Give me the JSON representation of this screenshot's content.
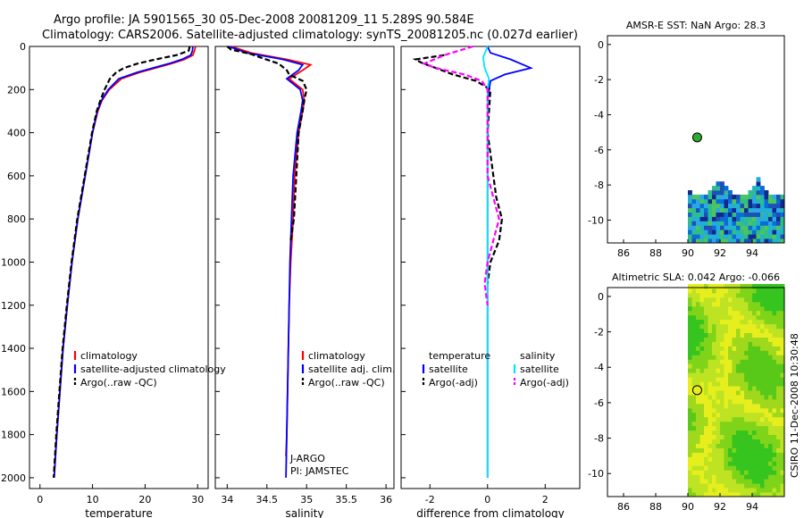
{
  "header": {
    "title_line1": "Argo profile: JA 5901565_30 05-Dec-2008 20081209_11 5.289S 90.584E",
    "title_line2": "Climatology: CARS2006. Satellite-adjusted climatology: synTS_20081205.nc (0.027d earlier)"
  },
  "side_label": "CSIRO 11-Dec-2008 10:30:48",
  "colors": {
    "clim": "#ff0000",
    "sat": "#0000ff",
    "argo": "#000000",
    "sat_salt": "#00e5ff",
    "argo_salt": "#ff00ff",
    "marker": "#2eaa2e"
  },
  "chart_data": [
    {
      "id": "temperature",
      "type": "line",
      "xlabel": "temperature",
      "xlim": [
        -2,
        32
      ],
      "ylim": [
        2050,
        0
      ],
      "xticks": [
        0,
        10,
        20,
        30
      ],
      "yticks": [
        0,
        200,
        400,
        600,
        800,
        1000,
        1200,
        1400,
        1600,
        1800,
        2000
      ],
      "legend": [
        "climatology",
        "satellite-adjusted climatology",
        "Argo(..raw -QC)"
      ],
      "series": [
        {
          "name": "climatology",
          "style": "clim",
          "points": [
            [
              29.6,
              0
            ],
            [
              29.4,
              20
            ],
            [
              29.1,
              40
            ],
            [
              27.5,
              60
            ],
            [
              25,
              80
            ],
            [
              22,
              100
            ],
            [
              19,
              120
            ],
            [
              15.5,
              150
            ],
            [
              13.2,
              200
            ],
            [
              11.8,
              250
            ],
            [
              11,
              300
            ],
            [
              10,
              400
            ],
            [
              8.6,
              600
            ],
            [
              7.2,
              800
            ],
            [
              6.1,
              1000
            ],
            [
              5.2,
              1200
            ],
            [
              4.4,
              1400
            ],
            [
              3.8,
              1600
            ],
            [
              3.2,
              1800
            ],
            [
              2.7,
              2000
            ]
          ]
        },
        {
          "name": "satellite-adjusted climatology",
          "style": "sat",
          "points": [
            [
              29.1,
              0
            ],
            [
              29,
              20
            ],
            [
              28.7,
              40
            ],
            [
              27,
              60
            ],
            [
              24.5,
              80
            ],
            [
              21.5,
              100
            ],
            [
              18.5,
              120
            ],
            [
              15,
              150
            ],
            [
              13,
              200
            ],
            [
              11.7,
              250
            ],
            [
              10.9,
              300
            ],
            [
              10,
              400
            ],
            [
              8.6,
              600
            ],
            [
              7.2,
              800
            ],
            [
              6.1,
              1000
            ],
            [
              5.2,
              1200
            ],
            [
              4.4,
              1400
            ],
            [
              3.8,
              1600
            ],
            [
              3.2,
              1800
            ],
            [
              2.7,
              2000
            ]
          ]
        },
        {
          "name": "Argo(..raw -QC)",
          "style": "argo",
          "dash": true,
          "points": [
            [
              28.5,
              0
            ],
            [
              28.3,
              20
            ],
            [
              26,
              40
            ],
            [
              22,
              60
            ],
            [
              18.5,
              80
            ],
            [
              16,
              100
            ],
            [
              14.5,
              120
            ],
            [
              13.3,
              150
            ],
            [
              12.3,
              200
            ],
            [
              11.5,
              250
            ],
            [
              10.8,
              300
            ],
            [
              9.9,
              400
            ],
            [
              8.5,
              600
            ],
            [
              7.1,
              800
            ],
            [
              6,
              1000
            ],
            [
              5.1,
              1200
            ],
            [
              4.3,
              1400
            ],
            [
              3.7,
              1600
            ],
            [
              3.1,
              1800
            ],
            [
              2.6,
              2000
            ]
          ]
        }
      ]
    },
    {
      "id": "salinity",
      "type": "line",
      "xlabel": "salinity",
      "xlim": [
        33.85,
        36.1
      ],
      "ylim": [
        2050,
        0
      ],
      "xticks": [
        34,
        34.5,
        35,
        35.5,
        36
      ],
      "legend": [
        "climatology",
        "satellite adj. clim.",
        "Argo(..raw -QC)"
      ],
      "annotations": [
        "J-ARGO",
        "PI: JAMSTEC"
      ],
      "series": [
        {
          "name": "climatology",
          "style": "clim",
          "points": [
            [
              34.05,
              0
            ],
            [
              34.3,
              30
            ],
            [
              34.75,
              60
            ],
            [
              35.05,
              85
            ],
            [
              34.95,
              110
            ],
            [
              34.78,
              150
            ],
            [
              34.95,
              200
            ],
            [
              34.97,
              250
            ],
            [
              34.95,
              300
            ],
            [
              34.9,
              400
            ],
            [
              34.85,
              600
            ],
            [
              34.83,
              800
            ],
            [
              34.8,
              1000
            ],
            [
              34.78,
              1200
            ],
            [
              34.77,
              1400
            ],
            [
              34.76,
              1600
            ],
            [
              34.75,
              1800
            ],
            [
              34.74,
              1900
            ]
          ]
        },
        {
          "name": "satellite adj. clim.",
          "style": "sat",
          "points": [
            [
              34.02,
              0
            ],
            [
              34.25,
              30
            ],
            [
              34.7,
              60
            ],
            [
              34.95,
              85
            ],
            [
              34.9,
              110
            ],
            [
              34.75,
              150
            ],
            [
              34.92,
              200
            ],
            [
              34.95,
              250
            ],
            [
              34.93,
              300
            ],
            [
              34.88,
              400
            ],
            [
              34.83,
              600
            ],
            [
              34.81,
              800
            ],
            [
              34.79,
              1000
            ],
            [
              34.78,
              1200
            ],
            [
              34.77,
              1400
            ],
            [
              34.76,
              1600
            ],
            [
              34.75,
              1800
            ],
            [
              34.74,
              2000
            ]
          ]
        },
        {
          "name": "Argo(..raw -QC)",
          "style": "argo",
          "dash": true,
          "points": [
            [
              34.0,
              0
            ],
            [
              34.05,
              15
            ],
            [
              34.3,
              35
            ],
            [
              34.45,
              55
            ],
            [
              34.65,
              80
            ],
            [
              34.75,
              110
            ],
            [
              34.78,
              130
            ],
            [
              34.95,
              160
            ],
            [
              35.0,
              200
            ],
            [
              34.97,
              250
            ],
            [
              34.95,
              300
            ],
            [
              34.9,
              400
            ],
            [
              34.87,
              600
            ],
            [
              34.84,
              800
            ],
            [
              34.8,
              900
            ]
          ]
        }
      ]
    },
    {
      "id": "difference",
      "type": "line",
      "xlabel": "difference from climatology",
      "xlim": [
        -3,
        3.2
      ],
      "ylim": [
        2050,
        0
      ],
      "xticks": [
        -2,
        0,
        2
      ],
      "legend_left": [
        "temperature",
        "satellite",
        "Argo(-adj)"
      ],
      "legend_right": [
        "salinity",
        "satellite",
        "Argo(-adj)"
      ],
      "series": [
        {
          "name": "temperature satellite",
          "style": "sat",
          "points": [
            [
              0,
              0
            ],
            [
              0.1,
              30
            ],
            [
              0.8,
              60
            ],
            [
              1.5,
              100
            ],
            [
              0.6,
              130
            ],
            [
              0.1,
              160
            ],
            [
              0,
              250
            ],
            [
              0,
              2000
            ]
          ]
        },
        {
          "name": "temperature Argo(-adj)",
          "style": "argo",
          "dash": true,
          "points": [
            [
              -1.5,
              40
            ],
            [
              -2.5,
              60
            ],
            [
              -2.3,
              75
            ],
            [
              -1.8,
              100
            ],
            [
              -1.2,
              130
            ],
            [
              -0.4,
              160
            ],
            [
              0.1,
              200
            ],
            [
              0,
              400
            ],
            [
              0.3,
              700
            ],
            [
              0.5,
              800
            ],
            [
              0.4,
              900
            ],
            [
              0.1,
              1000
            ],
            [
              0,
              1100
            ]
          ]
        },
        {
          "name": "salinity satellite",
          "style": "sat_salt",
          "points": [
            [
              0,
              0
            ],
            [
              -0.15,
              50
            ],
            [
              -0.1,
              100
            ],
            [
              0.05,
              150
            ],
            [
              0,
              200
            ],
            [
              0,
              2000
            ]
          ]
        },
        {
          "name": "salinity Argo(-adj)",
          "style": "argo_salt",
          "dash": true,
          "points": [
            [
              -0.5,
              0
            ],
            [
              -1.5,
              40
            ],
            [
              -2.2,
              80
            ],
            [
              -1.8,
              100
            ],
            [
              -0.8,
              130
            ],
            [
              -0.2,
              160
            ],
            [
              0,
              200
            ],
            [
              0,
              600
            ],
            [
              0.2,
              700
            ],
            [
              0.4,
              800
            ],
            [
              0.2,
              900
            ],
            [
              0,
              1000
            ],
            [
              -0.1,
              1100
            ],
            [
              0,
              1200
            ]
          ]
        }
      ]
    },
    {
      "id": "sst_map",
      "type": "heatmap",
      "title": "AMSR-E SST: NaN Argo: 28.3",
      "xlim": [
        85,
        96
      ],
      "ylim": [
        -11.3,
        0.5
      ],
      "xticks": [
        86,
        88,
        90,
        92,
        94
      ],
      "yticks": [
        0,
        -2,
        -4,
        -6,
        -8,
        -10
      ],
      "argo_point": [
        90.58,
        -5.29
      ],
      "data_region": [
        90,
        95.8,
        -11.3,
        -7.5
      ],
      "palette": [
        "#0b6bd8",
        "#28a8e6",
        "#21b5c4",
        "#2fbe8a",
        "#1f4fb8",
        "#102a8c",
        "#4cc55f"
      ]
    },
    {
      "id": "sla_map",
      "type": "heatmap",
      "title": "Altimetric SLA: 0.042 Argo: -0.066",
      "xlim": [
        85,
        96
      ],
      "ylim": [
        -11.3,
        0.5
      ],
      "xticks": [
        86,
        88,
        90,
        92,
        94
      ],
      "yticks": [
        0,
        -2,
        -4,
        -6,
        -8,
        -10
      ],
      "argo_point": [
        90.58,
        -5.29
      ],
      "data_region": [
        90,
        95.8,
        -11.3,
        0.5
      ],
      "palette": [
        "#36c41f",
        "#7fd41a",
        "#bde323",
        "#e6ef1d",
        "#9fd81c",
        "#58c918"
      ]
    }
  ]
}
